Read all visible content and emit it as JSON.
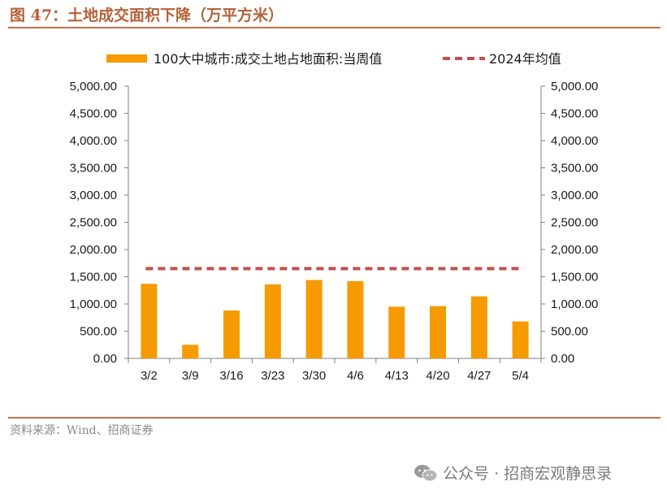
{
  "header": {
    "title": "图 47：土地成交面积下降（万平方米）"
  },
  "footer": {
    "source": "资料来源：Wind、招商证券"
  },
  "watermark": {
    "text": "公众号 · 招商宏观静思录",
    "icon": "wechat-icon"
  },
  "colors": {
    "bar": "#f59b00",
    "avg_line": "#c0504d",
    "title": "#b4623a",
    "rule": "#c0714a"
  },
  "chart_data": {
    "type": "bar",
    "title": "",
    "categories": [
      "3/2",
      "3/9",
      "3/16",
      "3/23",
      "3/30",
      "4/6",
      "4/13",
      "4/20",
      "4/27",
      "5/4"
    ],
    "series": [
      {
        "name": "100大中城市:成交土地占地面积:当周值",
        "type": "bar",
        "values": [
          1370,
          250,
          880,
          1360,
          1440,
          1420,
          950,
          960,
          1140,
          680
        ]
      },
      {
        "name": "2024年均值",
        "type": "line-dashed",
        "values": [
          1650,
          1650,
          1650,
          1650,
          1650,
          1650,
          1650,
          1650,
          1650,
          1650
        ]
      }
    ],
    "yticks": [
      "0.00",
      "500.00",
      "1,000.00",
      "1,500.00",
      "2,000.00",
      "2,500.00",
      "3,000.00",
      "3,500.00",
      "4,000.00",
      "4,500.00",
      "5,000.00"
    ],
    "ylim": [
      0,
      5000
    ],
    "xlabel": "",
    "ylabel": "",
    "grid": false,
    "legend_position": "top"
  }
}
